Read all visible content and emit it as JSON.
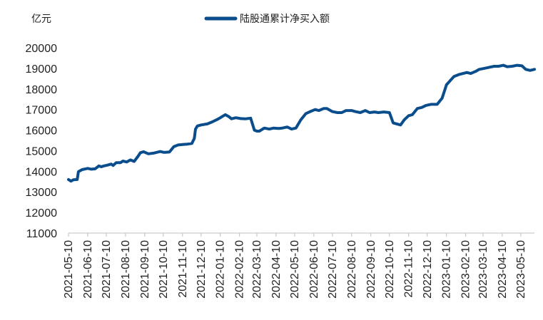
{
  "chart_data": {
    "type": "line",
    "unit_label": "亿元",
    "series": [
      {
        "name": "陆股通累计净买入额",
        "color": "#0a4d8c",
        "x": [
          "2021-05-10",
          "2021-05-14",
          "2021-05-18",
          "2021-05-24",
          "2021-05-26",
          "2021-06-01",
          "2021-06-10",
          "2021-06-16",
          "2021-06-22",
          "2021-06-28",
          "2021-07-02",
          "2021-07-06",
          "2021-07-12",
          "2021-07-18",
          "2021-07-21",
          "2021-07-26",
          "2021-08-02",
          "2021-08-06",
          "2021-08-12",
          "2021-08-18",
          "2021-08-24",
          "2021-08-30",
          "2021-09-03",
          "2021-09-08",
          "2021-09-16",
          "2021-09-24",
          "2021-10-05",
          "2021-10-11",
          "2021-10-13",
          "2021-10-20",
          "2021-10-27",
          "2021-11-03",
          "2021-11-10",
          "2021-11-18",
          "2021-11-25",
          "2021-11-29",
          "2021-12-01",
          "2021-12-04",
          "2021-12-10",
          "2021-12-20",
          "2021-12-28",
          "2022-01-04",
          "2022-01-10",
          "2022-01-18",
          "2022-01-24",
          "2022-01-28",
          "2022-02-04",
          "2022-02-12",
          "2022-02-20",
          "2022-02-28",
          "2022-03-06",
          "2022-03-10",
          "2022-03-14",
          "2022-03-22",
          "2022-03-30",
          "2022-04-06",
          "2022-04-14",
          "2022-04-20",
          "2022-04-28",
          "2022-05-05",
          "2022-05-12",
          "2022-05-20",
          "2022-05-28",
          "2022-06-04",
          "2022-06-12",
          "2022-06-18",
          "2022-06-26",
          "2022-07-01",
          "2022-07-10",
          "2022-07-18",
          "2022-07-25",
          "2022-08-01",
          "2022-08-10",
          "2022-08-16",
          "2022-08-24",
          "2022-09-01",
          "2022-09-08",
          "2022-09-16",
          "2022-09-22",
          "2022-10-01",
          "2022-10-10",
          "2022-10-16",
          "2022-10-22",
          "2022-10-28",
          "2022-11-03",
          "2022-11-10",
          "2022-11-16",
          "2022-11-24",
          "2022-12-01",
          "2022-12-08",
          "2022-12-16",
          "2022-12-26",
          "2023-01-03",
          "2023-01-10",
          "2023-01-16",
          "2023-01-22",
          "2023-01-30",
          "2023-02-06",
          "2023-02-12",
          "2023-02-18",
          "2023-02-26",
          "2023-03-04",
          "2023-03-12",
          "2023-03-20",
          "2023-03-28",
          "2023-04-04",
          "2023-04-12",
          "2023-04-18",
          "2023-04-26",
          "2023-05-04",
          "2023-05-12",
          "2023-05-18",
          "2023-05-25",
          "2023-06-01"
        ],
        "values": [
          13600,
          13520,
          13590,
          13600,
          13980,
          14080,
          14140,
          14100,
          14120,
          14260,
          14220,
          14260,
          14300,
          14350,
          14280,
          14420,
          14420,
          14500,
          14450,
          14550,
          14480,
          14720,
          14900,
          14950,
          14850,
          14880,
          14960,
          14920,
          14920,
          14940,
          15200,
          15280,
          15300,
          15320,
          15350,
          15590,
          16050,
          16200,
          16250,
          16300,
          16400,
          16500,
          16600,
          16750,
          16650,
          16550,
          16600,
          16560,
          16550,
          16580,
          16000,
          15950,
          15950,
          16100,
          16050,
          16100,
          16080,
          16100,
          16150,
          16050,
          16100,
          16500,
          16800,
          16900,
          17000,
          16950,
          17050,
          17050,
          16900,
          16850,
          16850,
          16950,
          16950,
          16900,
          16850,
          16950,
          16850,
          16880,
          16850,
          16880,
          16850,
          16350,
          16300,
          16250,
          16500,
          16700,
          16750,
          17050,
          17100,
          17200,
          17250,
          17250,
          17550,
          18200,
          18400,
          18600,
          18700,
          18750,
          18800,
          18750,
          18850,
          18950,
          19000,
          19050,
          19100,
          19100,
          19150,
          19080,
          19100,
          19150,
          19120,
          18950,
          18900,
          18950
        ]
      }
    ],
    "x_tick_labels": [
      "2021-05-10",
      "2021-06-10",
      "2021-07-10",
      "2021-08-10",
      "2021-09-10",
      "2021-10-10",
      "2021-11-10",
      "2021-12-10",
      "2022-01-10",
      "2022-02-10",
      "2022-03-10",
      "2022-04-10",
      "2022-05-10",
      "2022-06-10",
      "2022-07-10",
      "2022-08-10",
      "2022-09-10",
      "2022-10-10",
      "2022-11-10",
      "2022-12-10",
      "2023-01-10",
      "2023-02-10",
      "2023-03-10",
      "2023-04-10",
      "2023-05-10"
    ],
    "y_ticks": [
      11000,
      12000,
      13000,
      14000,
      15000,
      16000,
      17000,
      18000,
      19000,
      20000
    ],
    "ylim": [
      11000,
      20000
    ],
    "xlim": [
      "2021-05-10",
      "2023-06-01"
    ],
    "grid": false,
    "legend_position": "top-center"
  }
}
